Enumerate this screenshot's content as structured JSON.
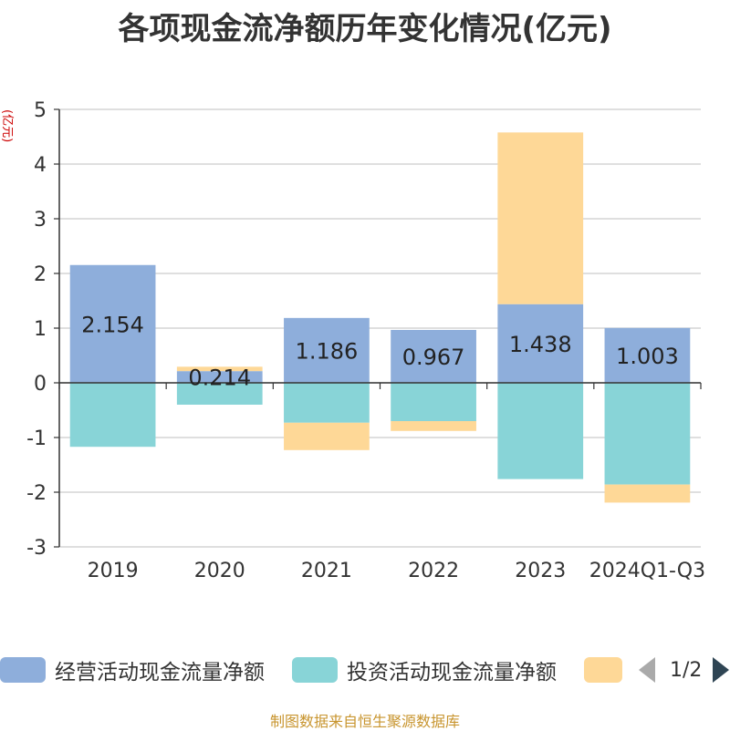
{
  "chart_data": {
    "type": "bar",
    "stacked": true,
    "title": "各项现金流净额历年变化情况(亿元)",
    "ylabel": "(亿元)",
    "xlabel": "",
    "ylim": [
      -3,
      5
    ],
    "yticks": [
      5,
      4,
      3,
      2,
      1,
      0,
      -1,
      -2,
      -3
    ],
    "grid": true,
    "legend_position": "bottom",
    "categories": [
      "2019",
      "2020",
      "2021",
      "2022",
      "2023",
      "2024Q1-Q3"
    ],
    "series": [
      {
        "name": "经营活动现金流量净额",
        "color": "#8eaedb",
        "values": [
          2.154,
          0.214,
          1.186,
          0.967,
          1.438,
          1.003
        ],
        "data_labels": [
          "2.154",
          "0.214",
          "1.186",
          "0.967",
          "1.438",
          "1.003"
        ]
      },
      {
        "name": "投资活动现金流量净额",
        "color": "#88d4d7",
        "values": [
          -1.17,
          -0.4,
          -0.73,
          -0.7,
          -1.76,
          -1.86
        ]
      },
      {
        "name": "",
        "color": "#fed897",
        "values": [
          0,
          0.08,
          -0.5,
          -0.18,
          3.14,
          -0.33
        ]
      }
    ]
  },
  "legend": {
    "items": [
      {
        "label": "经营活动现金流量净额",
        "color": "#8eaedb"
      },
      {
        "label": "投资活动现金流量净额",
        "color": "#88d4d7"
      },
      {
        "label": "",
        "color": "#fed897"
      }
    ],
    "page_indicator": "1/2"
  },
  "source_note": "制图数据来自恒生聚源数据库"
}
